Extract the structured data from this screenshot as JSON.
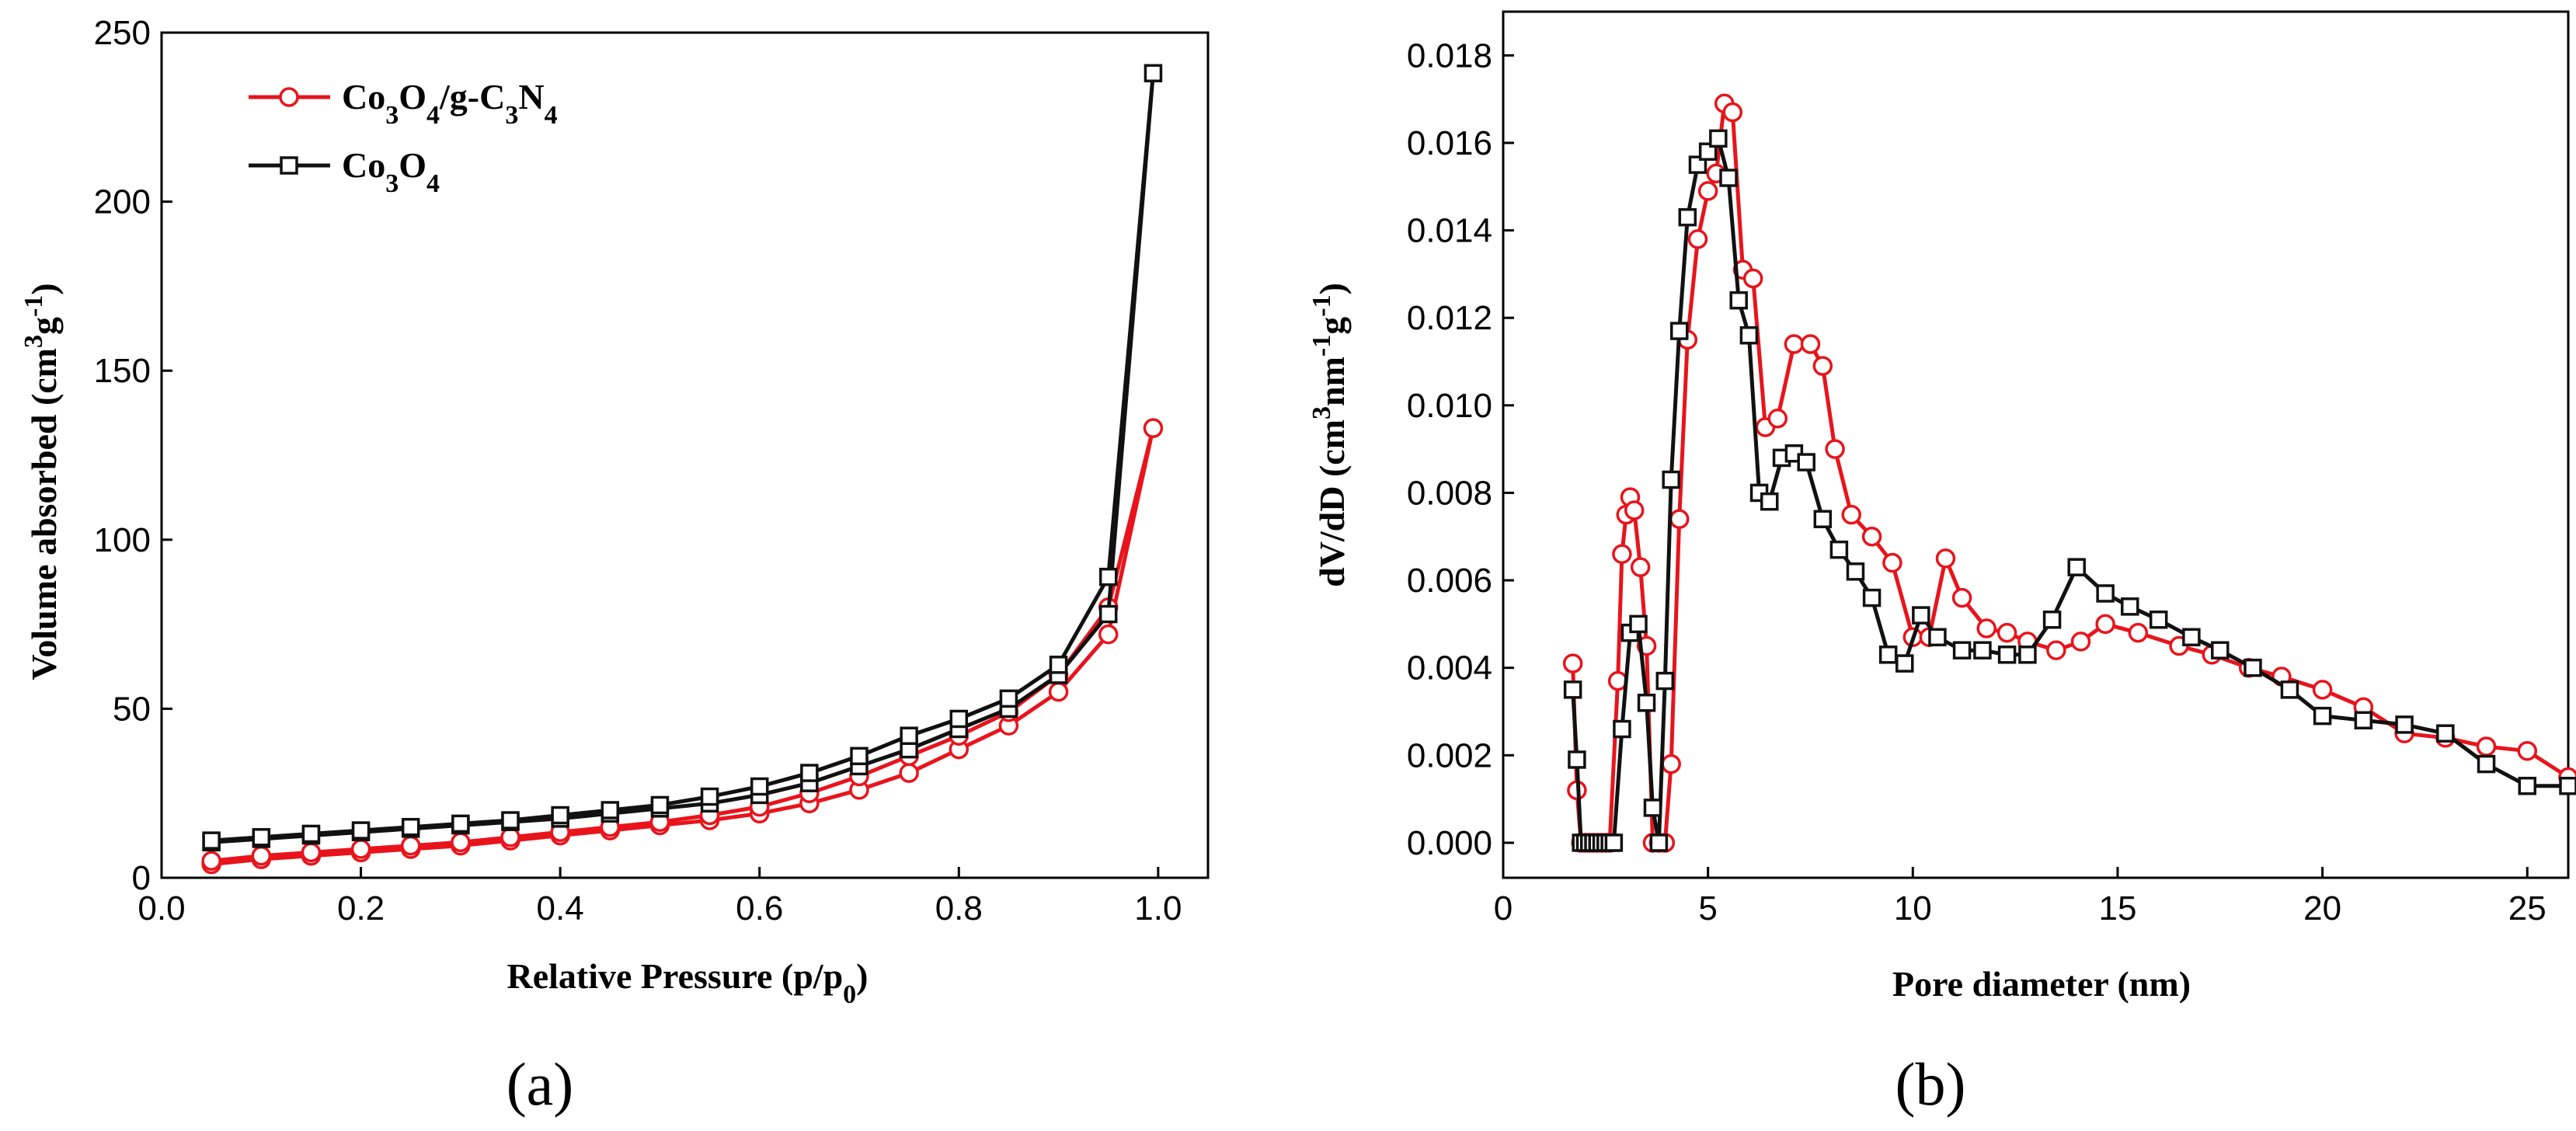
{
  "figure": {
    "panel_a_label": "(a)",
    "panel_b_label": "(b)"
  },
  "colors": {
    "red": "#e8141c",
    "black": "#111111"
  },
  "chart_data": [
    {
      "type": "line",
      "panel": "a",
      "xlabel": "Relative Pressure (p/p0)",
      "xlabel_parts": {
        "text": "Relative Pressure (p/p",
        "sub": "0",
        "close": ")"
      },
      "ylabel": "Volume absorbed (cm3g-1)",
      "ylabel_parts": {
        "t1": "Volume absorbed (cm",
        "sup1": "3",
        "t2": "g",
        "sup2": "-1",
        "t3": ")"
      },
      "xlim": [
        0.0,
        1.05
      ],
      "ylim": [
        0,
        250
      ],
      "xticks": [
        0.0,
        0.2,
        0.4,
        0.6,
        0.8,
        1.0
      ],
      "xtick_labels": [
        "0.0",
        "0.2",
        "0.4",
        "0.6",
        "0.8",
        "1.0"
      ],
      "yticks": [
        0,
        50,
        100,
        150,
        200,
        250
      ],
      "ytick_labels": [
        "0",
        "50",
        "100",
        "150",
        "200",
        "250"
      ],
      "legend_position": "top-left",
      "series": [
        {
          "name": "Co3O4/g-C3N4",
          "legend": [
            [
              "Co",
              ""
            ],
            [
              "3",
              "sub"
            ],
            [
              "O",
              ""
            ],
            [
              "4",
              "sub"
            ],
            [
              "/g-C",
              ""
            ],
            [
              "3",
              "sub"
            ],
            [
              "N",
              ""
            ],
            [
              "4",
              "sub"
            ]
          ],
          "color": "#e8141c",
          "marker": "circle",
          "x": [
            0.05,
            0.1,
            0.15,
            0.2,
            0.25,
            0.3,
            0.35,
            0.4,
            0.45,
            0.5,
            0.55,
            0.6,
            0.65,
            0.7,
            0.75,
            0.8,
            0.85,
            0.9,
            0.95,
            0.995,
            0.95,
            0.9,
            0.85,
            0.8,
            0.75,
            0.7,
            0.65,
            0.6,
            0.55,
            0.5,
            0.45,
            0.4,
            0.35,
            0.3,
            0.25,
            0.2,
            0.15,
            0.1,
            0.05
          ],
          "y": [
            4,
            5.5,
            6.5,
            7.5,
            8.5,
            9.5,
            11,
            12.5,
            14,
            15.5,
            17,
            19,
            22,
            26,
            31,
            38,
            45,
            55,
            72,
            133,
            80,
            60,
            49,
            42,
            36,
            30,
            25,
            21,
            18.5,
            16.5,
            15,
            13.5,
            12,
            10.5,
            9.5,
            8.5,
            7.5,
            6.5,
            5
          ]
        },
        {
          "name": "Co3O4",
          "legend": [
            [
              "Co",
              ""
            ],
            [
              "3",
              "sub"
            ],
            [
              "O",
              ""
            ],
            [
              "4",
              "sub"
            ]
          ],
          "color": "#111111",
          "marker": "square",
          "x": [
            0.05,
            0.1,
            0.15,
            0.2,
            0.25,
            0.3,
            0.35,
            0.4,
            0.45,
            0.5,
            0.55,
            0.6,
            0.65,
            0.7,
            0.75,
            0.8,
            0.85,
            0.9,
            0.95,
            0.995,
            0.95,
            0.9,
            0.85,
            0.8,
            0.75,
            0.7,
            0.65,
            0.6,
            0.55,
            0.5,
            0.45,
            0.4,
            0.35,
            0.3,
            0.25,
            0.2,
            0.15,
            0.1,
            0.05
          ],
          "y": [
            10.5,
            11.5,
            12.5,
            13.5,
            14.5,
            15.5,
            16.5,
            17.5,
            19,
            20.5,
            22,
            24.5,
            28,
            33,
            38,
            44,
            50,
            60,
            78,
            238,
            89,
            63,
            53,
            47,
            42,
            36,
            31,
            27,
            24,
            21.5,
            20,
            18.5,
            17,
            16,
            15,
            14,
            13,
            12,
            11
          ]
        }
      ]
    },
    {
      "type": "line",
      "panel": "b",
      "xlabel": "Pore diameter (nm)",
      "ylabel": "dV/dD (cm3nm-1g-1)",
      "ylabel_parts": {
        "t1": "dV/dD (cm",
        "sup1": "3",
        "t2": "nm",
        "sup2": "-1",
        "t3": "g",
        "sup3": "-1",
        "t4": ")"
      },
      "xlim": [
        0,
        26
      ],
      "ylim": [
        -0.0008,
        0.019
      ],
      "xticks": [
        0,
        5,
        10,
        15,
        20,
        25
      ],
      "xtick_labels": [
        "0",
        "5",
        "10",
        "15",
        "20",
        "25"
      ],
      "yticks": [
        0.0,
        0.002,
        0.004,
        0.006,
        0.008,
        0.01,
        0.012,
        0.014,
        0.016,
        0.018
      ],
      "ytick_labels": [
        "0.000",
        "0.002",
        "0.004",
        "0.006",
        "0.008",
        "0.010",
        "0.012",
        "0.014",
        "0.016",
        "0.018"
      ],
      "series": [
        {
          "name": "Co3O4/g-C3N4",
          "color": "#e8141c",
          "marker": "circle",
          "x": [
            1.7,
            1.8,
            1.9,
            2.0,
            2.1,
            2.2,
            2.3,
            2.4,
            2.5,
            2.6,
            2.8,
            2.9,
            3.0,
            3.1,
            3.2,
            3.35,
            3.5,
            3.65,
            3.8,
            3.95,
            4.1,
            4.3,
            4.5,
            4.75,
            5.0,
            5.2,
            5.4,
            5.6,
            5.85,
            6.1,
            6.4,
            6.7,
            7.1,
            7.5,
            7.8,
            8.1,
            8.5,
            9.0,
            9.5,
            10.0,
            10.4,
            10.8,
            11.2,
            11.8,
            12.3,
            12.8,
            13.5,
            14.1,
            14.7,
            15.5,
            16.5,
            17.3,
            18.2,
            19.0,
            20.0,
            21.0,
            22.0,
            23.0,
            24.0,
            25.0,
            26.0
          ],
          "y": [
            0.0041,
            0.0012,
            0.0,
            0.0,
            0.0,
            0.0,
            0.0,
            0.0,
            0.0,
            0.0,
            0.0037,
            0.0066,
            0.0075,
            0.0079,
            0.0076,
            0.0063,
            0.0045,
            0.0,
            0.0,
            0.0,
            0.0018,
            0.0074,
            0.0115,
            0.0138,
            0.0149,
            0.0153,
            0.0169,
            0.0167,
            0.0131,
            0.0129,
            0.0095,
            0.0097,
            0.0114,
            0.0114,
            0.0109,
            0.009,
            0.0075,
            0.007,
            0.0064,
            0.0047,
            0.0047,
            0.0065,
            0.0056,
            0.0049,
            0.0048,
            0.0046,
            0.0044,
            0.0046,
            0.005,
            0.0048,
            0.0045,
            0.0043,
            0.004,
            0.0038,
            0.0035,
            0.0031,
            0.0025,
            0.0024,
            0.0022,
            0.0021,
            0.0015
          ]
        },
        {
          "name": "Co3O4",
          "color": "#111111",
          "marker": "square",
          "x": [
            1.7,
            1.8,
            1.9,
            2.0,
            2.1,
            2.2,
            2.3,
            2.4,
            2.5,
            2.6,
            2.7,
            2.9,
            3.1,
            3.3,
            3.5,
            3.65,
            3.8,
            3.95,
            4.1,
            4.3,
            4.5,
            4.75,
            5.0,
            5.25,
            5.5,
            5.75,
            6.0,
            6.25,
            6.5,
            6.8,
            7.1,
            7.4,
            7.8,
            8.2,
            8.6,
            9.0,
            9.4,
            9.8,
            10.2,
            10.6,
            11.2,
            11.7,
            12.3,
            12.8,
            13.4,
            14.0,
            14.7,
            15.3,
            16.0,
            16.8,
            17.5,
            18.3,
            19.2,
            20.0,
            21.0,
            22.0,
            23.0,
            24.0,
            25.0,
            26.0
          ],
          "y": [
            0.0035,
            0.0019,
            0.0,
            0.0,
            0.0,
            0.0,
            0.0,
            0.0,
            0.0,
            0.0,
            0.0,
            0.0026,
            0.0048,
            0.005,
            0.0032,
            0.0008,
            0.0,
            0.0037,
            0.0083,
            0.0117,
            0.0143,
            0.0155,
            0.0158,
            0.0161,
            0.0152,
            0.0124,
            0.0116,
            0.008,
            0.0078,
            0.0088,
            0.0089,
            0.0087,
            0.0074,
            0.0067,
            0.0062,
            0.0056,
            0.0043,
            0.0041,
            0.0052,
            0.0047,
            0.0044,
            0.0044,
            0.0043,
            0.0043,
            0.0051,
            0.0063,
            0.0057,
            0.0054,
            0.0051,
            0.0047,
            0.0044,
            0.004,
            0.0035,
            0.0029,
            0.0028,
            0.0027,
            0.0025,
            0.0018,
            0.0013,
            0.0013
          ]
        }
      ]
    }
  ]
}
